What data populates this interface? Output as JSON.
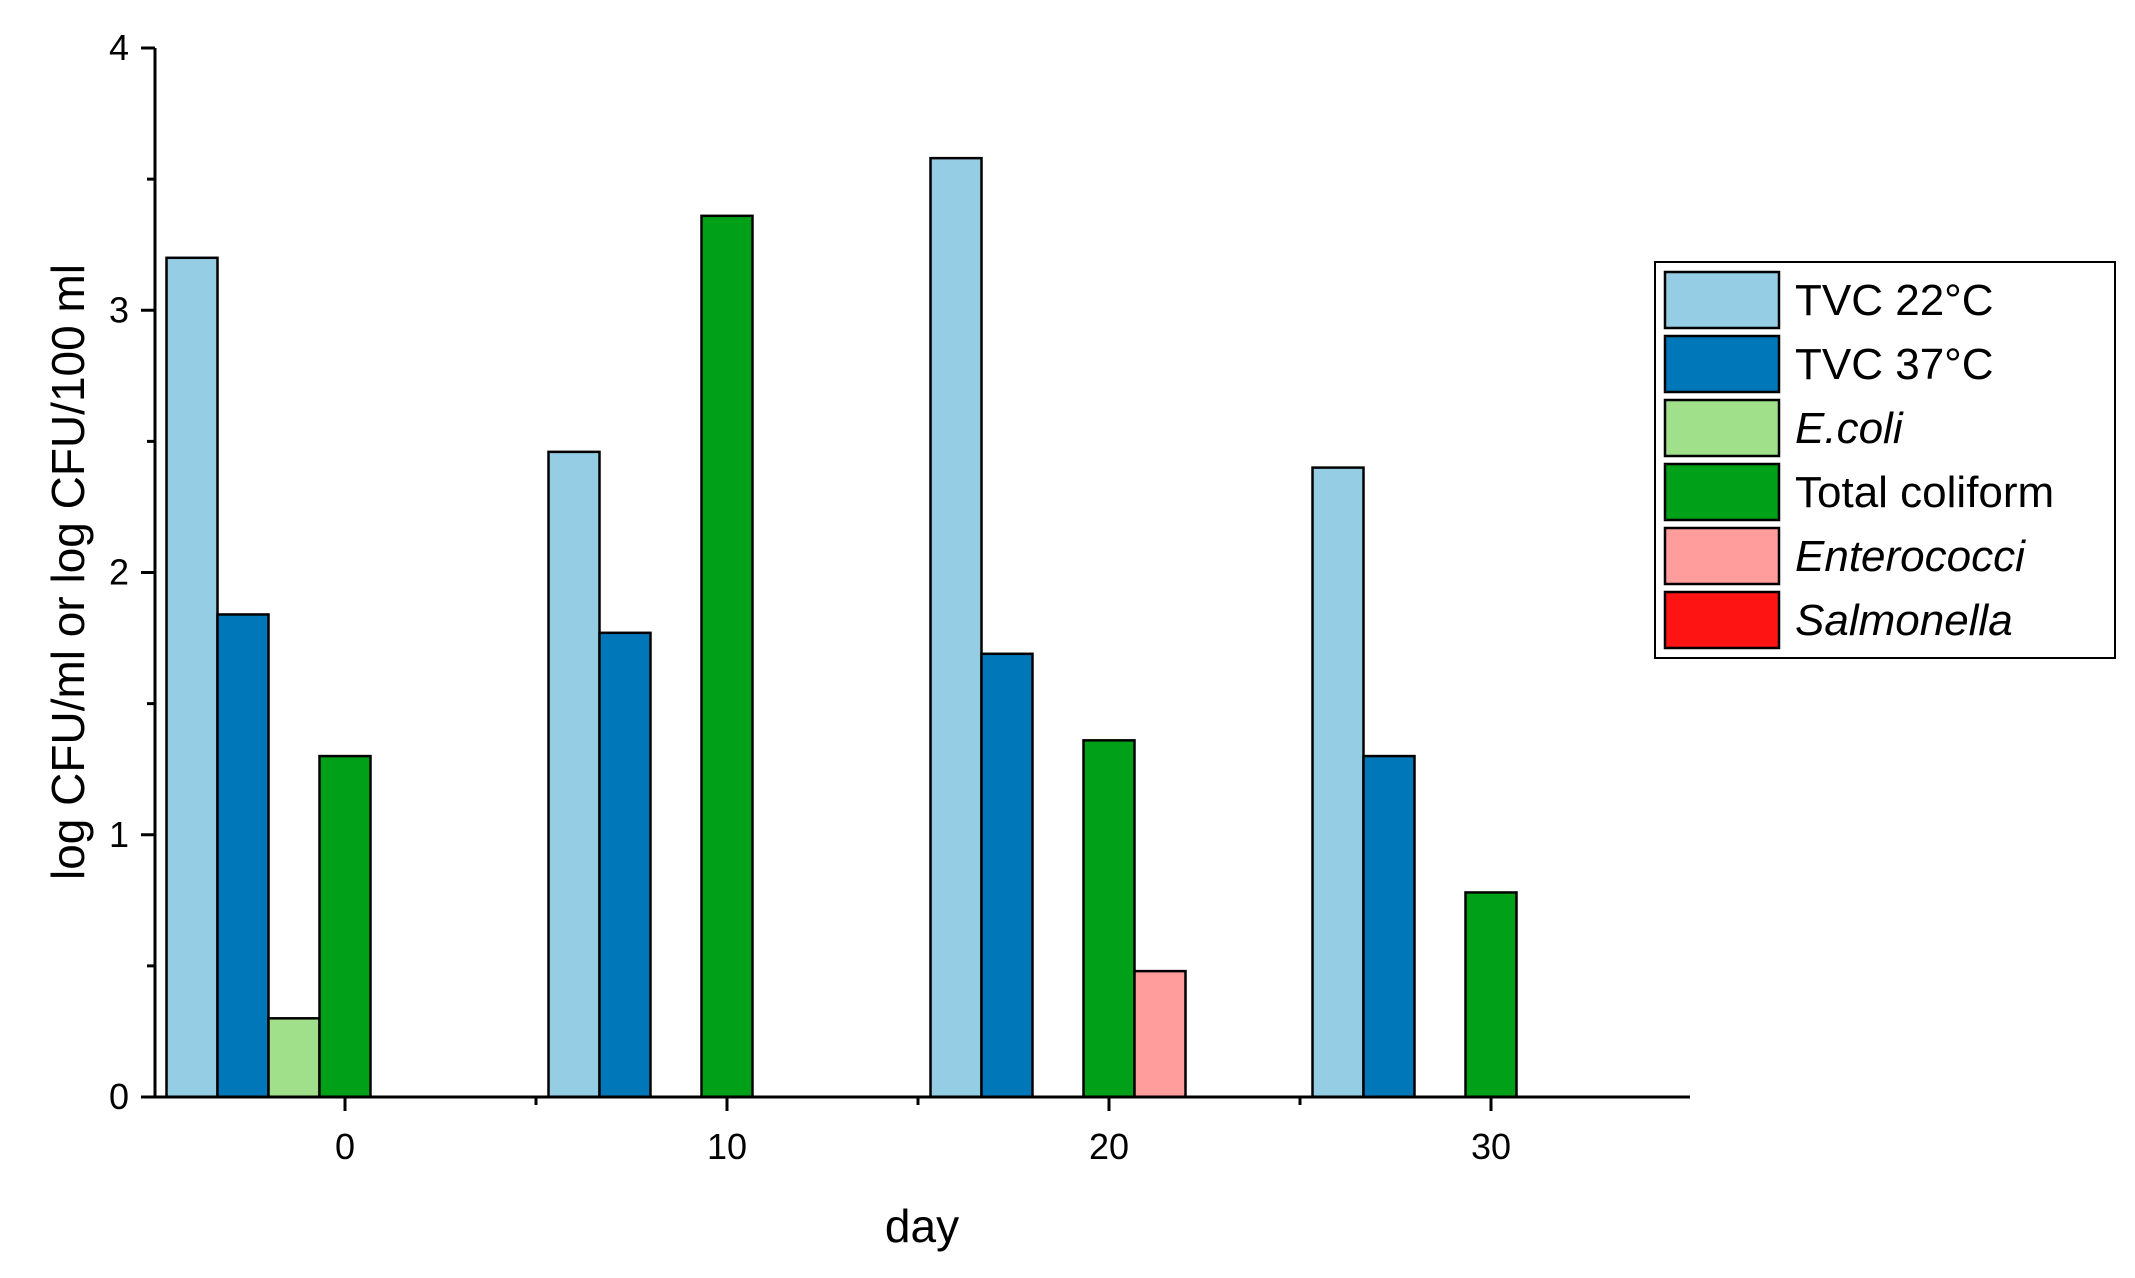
{
  "chart_data": {
    "type": "bar",
    "xlabel": "day",
    "ylabel": "log CFU/ml or log CFU/100 ml",
    "ylim": [
      0,
      4
    ],
    "yticks": [
      "0",
      "1",
      "2",
      "3",
      "4"
    ],
    "categories": [
      "0",
      "10",
      "20",
      "30"
    ],
    "grid": false,
    "legend_position": "right",
    "series": [
      {
        "name": "TVC 22°C",
        "italic": false,
        "color": "#95CDE4",
        "values": [
          3.2,
          2.46,
          3.58,
          2.4
        ]
      },
      {
        "name": "TVC 37°C",
        "italic": false,
        "color": "#0077B8",
        "values": [
          1.84,
          1.77,
          1.69,
          1.3
        ]
      },
      {
        "name": "E.coli",
        "italic": true,
        "color": "#A0E08A",
        "values": [
          0.3,
          0,
          0,
          0
        ]
      },
      {
        "name": "Total coliform",
        "italic": false,
        "color": "#00A019",
        "values": [
          1.3,
          3.36,
          1.36,
          0.78
        ]
      },
      {
        "name": "Enterococci",
        "italic": true,
        "color": "#FF9D9D",
        "values": [
          0,
          0,
          0.48,
          0
        ]
      },
      {
        "name": "Salmonella",
        "italic": true,
        "color": "#FF1414",
        "values": [
          0,
          0,
          0,
          0
        ]
      }
    ]
  }
}
